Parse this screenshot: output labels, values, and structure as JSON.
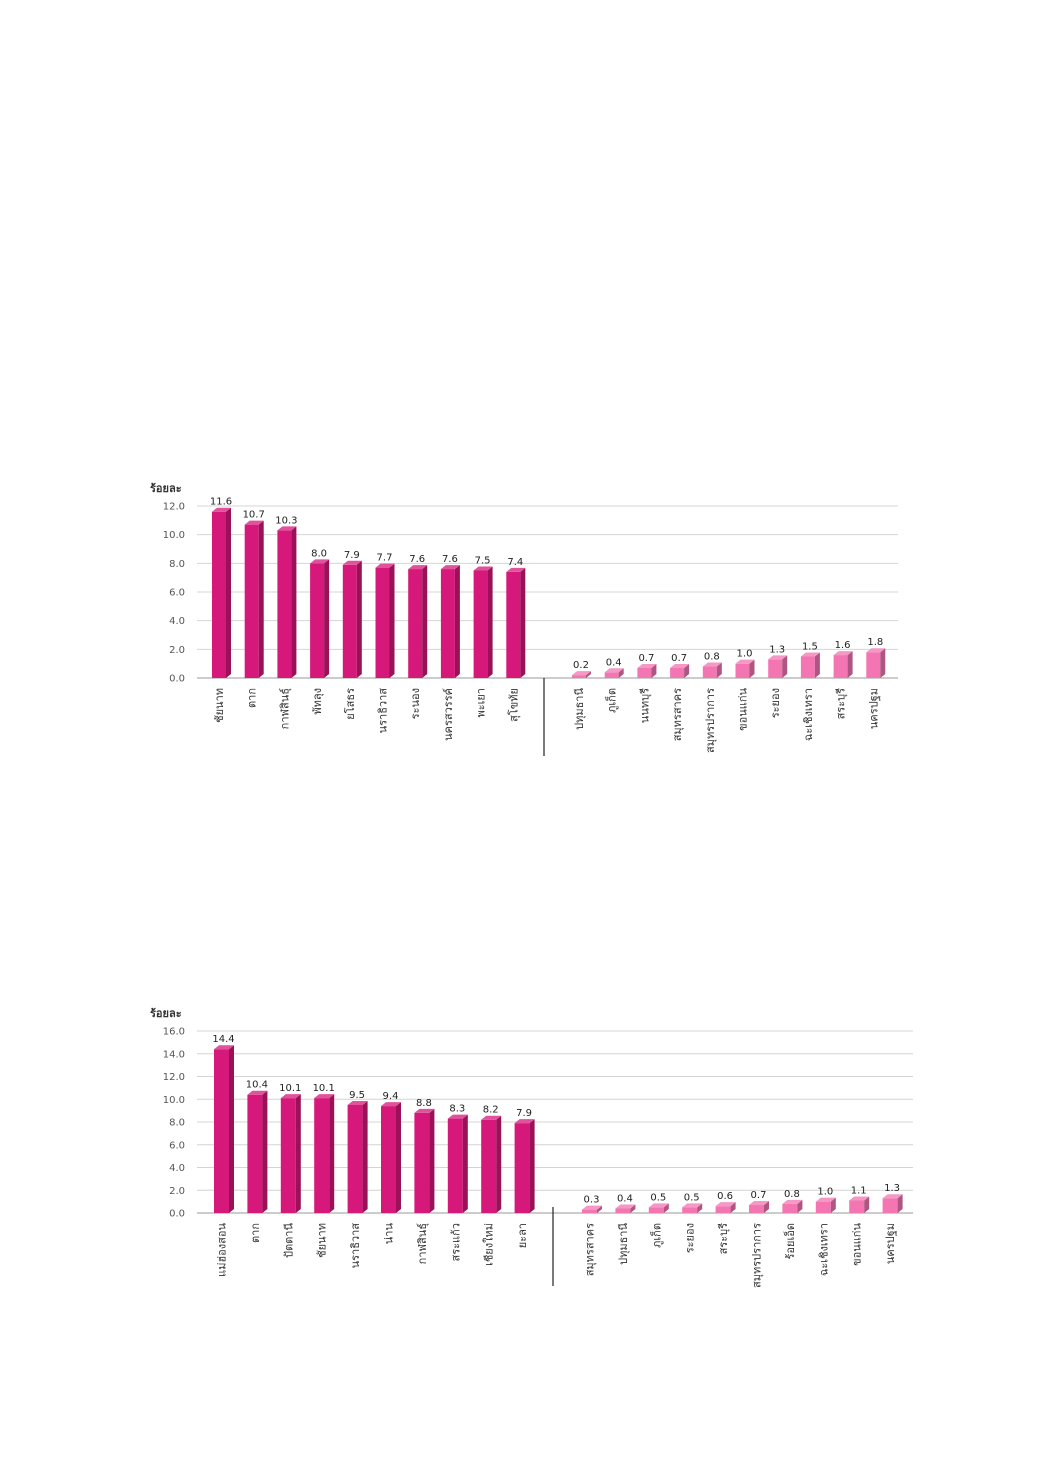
{
  "chart_data": [
    {
      "type": "bar",
      "ylabel": "ร้อยละ",
      "ylim": [
        0,
        12
      ],
      "yticks": [
        "0.0",
        "2.0",
        "4.0",
        "6.0",
        "8.0",
        "10.0",
        "12.0"
      ],
      "grid": true,
      "groups": [
        {
          "color": "#d6187a",
          "categories": [
            "ชัยนาท",
            "ตาก",
            "กาฬสินธุ์",
            "พัทลุง",
            "ยโสธร",
            "นราธิวาส",
            "ระนอง",
            "นครสวรรค์",
            "พะเยา",
            "สุโขทัย"
          ],
          "values": [
            11.6,
            10.7,
            10.3,
            8.0,
            7.9,
            7.7,
            7.6,
            7.6,
            7.5,
            7.4
          ],
          "labels": [
            "11.6",
            "10.7",
            "10.3",
            "8.0",
            "7.9",
            "7.7",
            "7.6",
            "7.6",
            "7.5",
            "7.4"
          ]
        },
        {
          "color": "#f376b3",
          "categories": [
            "ปทุมธานี",
            "ภูเก็ต",
            "นนทบุรี",
            "สมุทรสาคร",
            "สมุทรปราการ",
            "ขอนแก่น",
            "ระยอง",
            "ฉะเชิงเทรา",
            "สระบุรี",
            "นครปฐม"
          ],
          "values": [
            0.2,
            0.4,
            0.7,
            0.7,
            0.8,
            1.0,
            1.3,
            1.5,
            1.6,
            1.8
          ],
          "labels": [
            "0.2",
            "0.4",
            "0.7",
            "0.7",
            "0.8",
            "1.0",
            "1.3",
            "1.5",
            "1.6",
            "1.8"
          ]
        }
      ]
    },
    {
      "type": "bar",
      "ylabel": "ร้อยละ",
      "ylim": [
        0,
        16
      ],
      "yticks": [
        "0.0",
        "2.0",
        "4.0",
        "6.0",
        "8.0",
        "10.0",
        "12.0",
        "14.0",
        "16.0"
      ],
      "grid": true,
      "groups": [
        {
          "color": "#d6187a",
          "categories": [
            "แม่ฮ่องสอน",
            "ตาก",
            "ปัตตานี",
            "ชัยนาท",
            "นราธิวาส",
            "น่าน",
            "กาฬสินธุ์",
            "สระแก้ว",
            "เชียงใหม่",
            "ยะลา"
          ],
          "values": [
            14.4,
            10.4,
            10.1,
            10.1,
            9.5,
            9.4,
            8.8,
            8.3,
            8.2,
            7.9
          ],
          "labels": [
            "14.4",
            "10.4",
            "10.1",
            "10.1",
            "9.5",
            "9.4",
            "8.8",
            "8.3",
            "8.2",
            "7.9"
          ]
        },
        {
          "color": "#f376b3",
          "categories": [
            "สมุทรสาคร",
            "ปทุมธานี",
            "ภูเก็ต",
            "ระยอง",
            "สระบุรี",
            "สมุทรปราการ",
            "ร้อยเอ็ด",
            "ฉะเชิงเทรา",
            "ขอนแก่น",
            "นครปฐม"
          ],
          "values": [
            0.3,
            0.4,
            0.5,
            0.5,
            0.6,
            0.7,
            0.8,
            1.0,
            1.1,
            1.3
          ],
          "labels": [
            "0.3",
            "0.4",
            "0.5",
            "0.5",
            "0.6",
            "0.7",
            "0.8",
            "1.0",
            "1.1",
            "1.3"
          ]
        }
      ]
    }
  ]
}
